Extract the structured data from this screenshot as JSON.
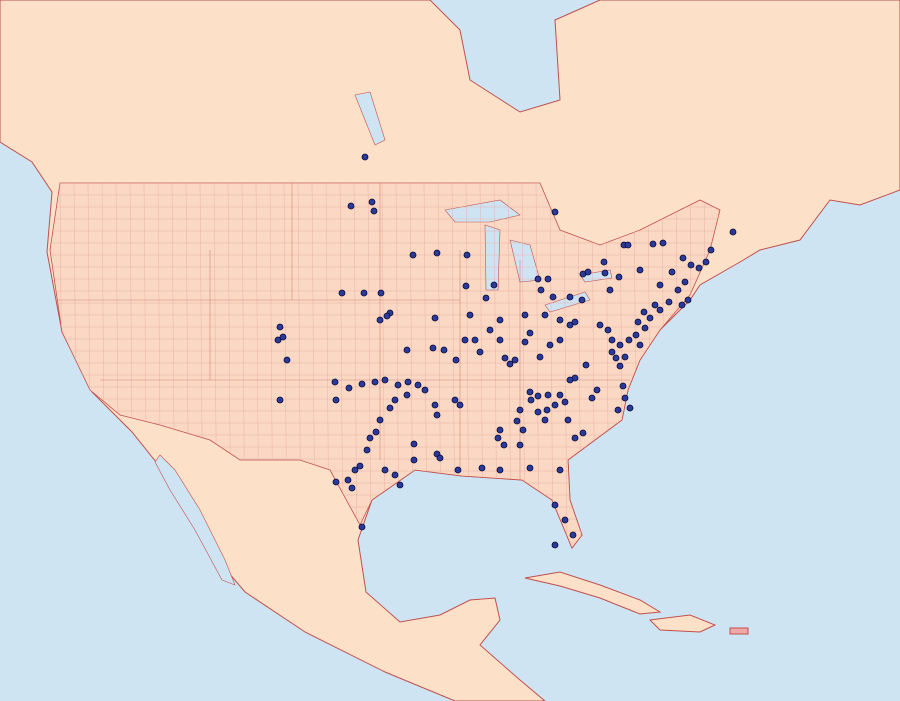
{
  "map": {
    "colors": {
      "water": "#cfe4f3",
      "land": "#fce0c8",
      "us_land": "#fad8c4",
      "border": "#c0504d",
      "county_lines": "#e8a8a0",
      "dot_fill": "#2a3a9c",
      "dot_stroke": "#0a0a30"
    },
    "marker": "occurrence-dot"
  }
}
